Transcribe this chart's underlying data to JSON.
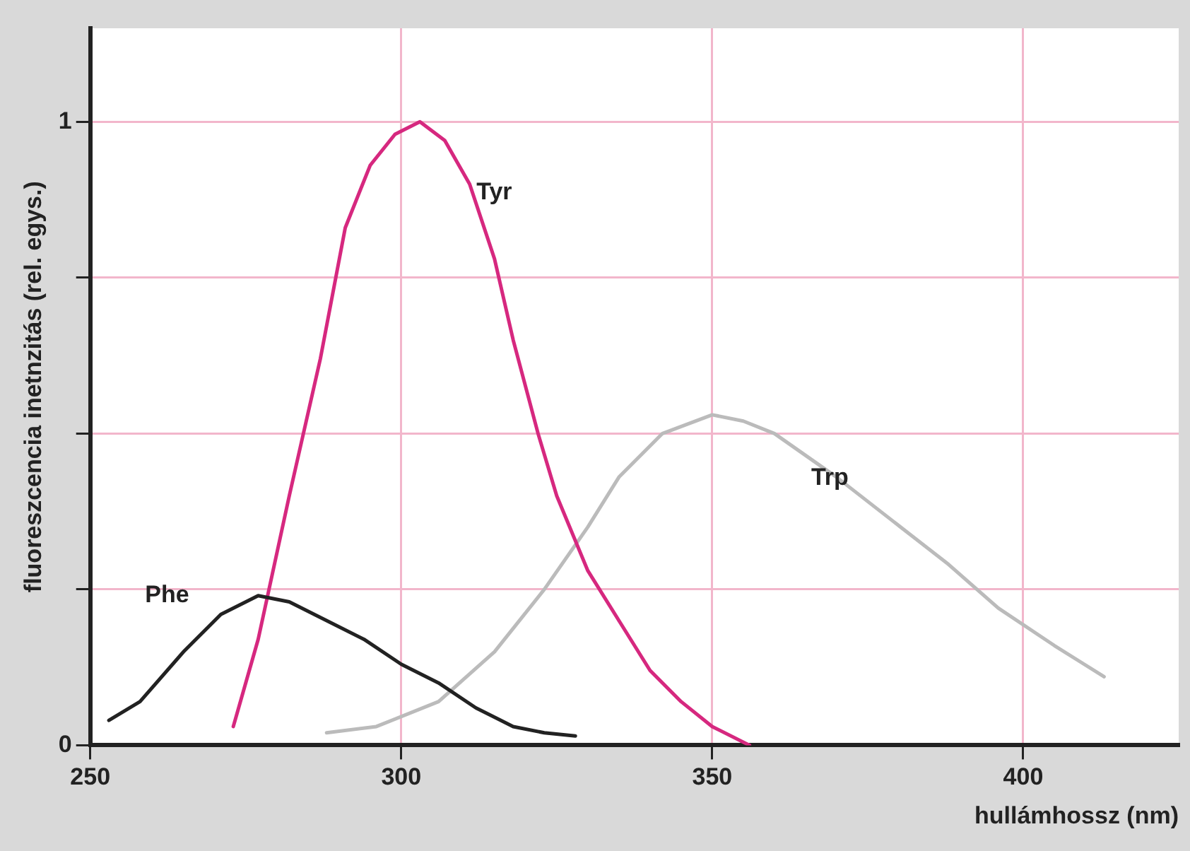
{
  "chart_data": {
    "type": "line",
    "xlabel": "hullámhossz (nm)",
    "ylabel": "fluoreszcencia inetnzitás (rel. egys.)",
    "xlim": [
      250,
      425
    ],
    "xticks": [
      250,
      300,
      350,
      400
    ],
    "ylim": [
      0,
      1.15
    ],
    "yticks": [
      0,
      {
        "value": 0.25,
        "label": null
      },
      {
        "value": 0.5,
        "label": null
      },
      {
        "value": 0.75,
        "label": null
      },
      1
    ],
    "grid": true,
    "legend": false,
    "line_style": "solid",
    "series": [
      {
        "name": "Phe",
        "color": "#222222",
        "x": [
          253,
          258,
          265,
          271,
          277,
          282,
          288,
          294,
          300,
          306,
          312,
          318,
          323,
          328
        ],
        "values": [
          0.04,
          0.07,
          0.15,
          0.21,
          0.24,
          0.23,
          0.2,
          0.17,
          0.13,
          0.1,
          0.06,
          0.03,
          0.02,
          0.015
        ]
      },
      {
        "name": "Tyr",
        "color": "#d6287f",
        "x": [
          273,
          277,
          282,
          287,
          291,
          295,
          299,
          303,
          307,
          311,
          315,
          318,
          322,
          325,
          330,
          335,
          340,
          345,
          350,
          356
        ],
        "values": [
          0.03,
          0.17,
          0.4,
          0.62,
          0.83,
          0.93,
          0.98,
          1.0,
          0.97,
          0.9,
          0.78,
          0.65,
          0.5,
          0.4,
          0.28,
          0.2,
          0.12,
          0.07,
          0.03,
          0
        ]
      },
      {
        "name": "Trp",
        "color": "#bbbbbb",
        "x": [
          288,
          296,
          306,
          315,
          323,
          330,
          335,
          342,
          350,
          355,
          360,
          370,
          379,
          388,
          396,
          405,
          413
        ],
        "values": [
          0.02,
          0.03,
          0.07,
          0.15,
          0.25,
          0.35,
          0.43,
          0.5,
          0.53,
          0.52,
          0.5,
          0.43,
          0.36,
          0.29,
          0.22,
          0.16,
          0.11
        ]
      }
    ]
  }
}
